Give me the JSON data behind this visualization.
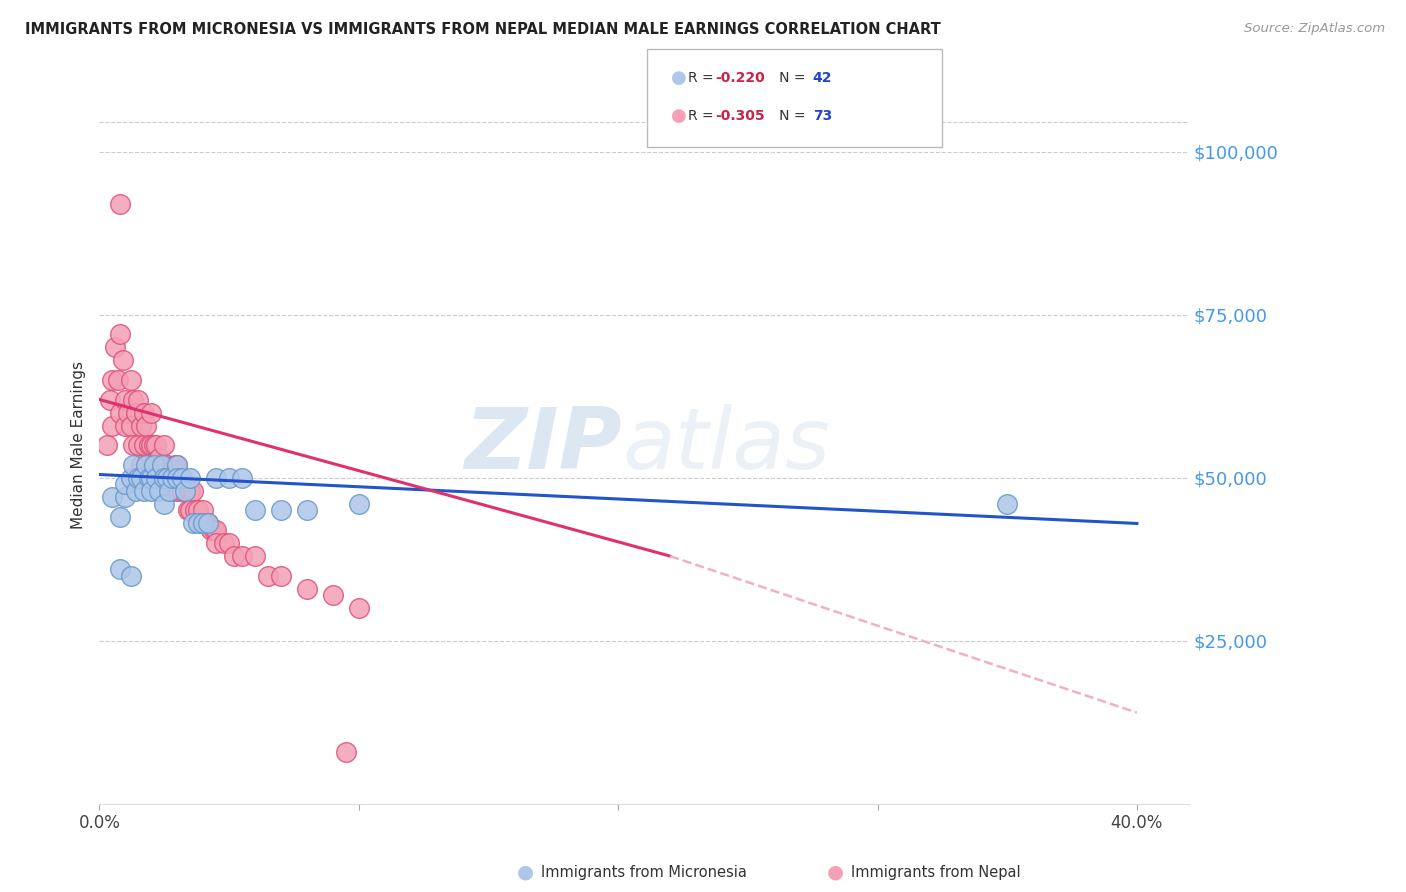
{
  "title": "IMMIGRANTS FROM MICRONESIA VS IMMIGRANTS FROM NEPAL MEDIAN MALE EARNINGS CORRELATION CHART",
  "source": "Source: ZipAtlas.com",
  "ylabel": "Median Male Earnings",
  "yticks": [
    0,
    25000,
    50000,
    75000,
    100000
  ],
  "ytick_labels": [
    "",
    "$25,000",
    "$50,000",
    "$75,000",
    "$100,000"
  ],
  "xlim": [
    0.0,
    0.42
  ],
  "ylim": [
    0,
    110000
  ],
  "micronesia_color": "#aec6e8",
  "micronesia_edge": "#6699cc",
  "nepal_color": "#f4a0b5",
  "nepal_edge": "#e0507a",
  "trend_micronesia_color": "#2255cc",
  "trend_nepal_color": "#e03070",
  "trend_nepal_ext_color": "#f0b0c8",
  "watermark_zip": "ZIP",
  "watermark_atlas": "atlas",
  "background_color": "#ffffff",
  "grid_color": "#cccccc",
  "ytick_color": "#4499ee",
  "title_color": "#222222",
  "source_color": "#999999",
  "micronesia_x": [
    0.005,
    0.008,
    0.008,
    0.01,
    0.01,
    0.012,
    0.013,
    0.014,
    0.015,
    0.016,
    0.017,
    0.018,
    0.019,
    0.02,
    0.02,
    0.021,
    0.022,
    0.023,
    0.024,
    0.025,
    0.025,
    0.026,
    0.027,
    0.028,
    0.03,
    0.03,
    0.032,
    0.033,
    0.035,
    0.036,
    0.038,
    0.04,
    0.042,
    0.045,
    0.05,
    0.055,
    0.06,
    0.07,
    0.08,
    0.1,
    0.35,
    0.012
  ],
  "micronesia_y": [
    47000,
    44000,
    36000,
    47000,
    49000,
    50000,
    52000,
    48000,
    50000,
    50000,
    48000,
    52000,
    50000,
    50000,
    48000,
    52000,
    50000,
    48000,
    52000,
    50000,
    46000,
    50000,
    48000,
    50000,
    52000,
    50000,
    50000,
    48000,
    50000,
    43000,
    43000,
    43000,
    43000,
    50000,
    50000,
    50000,
    45000,
    45000,
    45000,
    46000,
    46000,
    35000
  ],
  "nepal_x": [
    0.003,
    0.004,
    0.005,
    0.005,
    0.006,
    0.007,
    0.008,
    0.008,
    0.009,
    0.01,
    0.01,
    0.011,
    0.012,
    0.012,
    0.013,
    0.013,
    0.014,
    0.015,
    0.015,
    0.016,
    0.016,
    0.017,
    0.017,
    0.018,
    0.018,
    0.019,
    0.02,
    0.02,
    0.021,
    0.021,
    0.022,
    0.022,
    0.023,
    0.024,
    0.025,
    0.025,
    0.026,
    0.027,
    0.028,
    0.028,
    0.029,
    0.03,
    0.03,
    0.031,
    0.032,
    0.033,
    0.034,
    0.035,
    0.035,
    0.036,
    0.037,
    0.038,
    0.039,
    0.04,
    0.04,
    0.041,
    0.042,
    0.043,
    0.044,
    0.045,
    0.045,
    0.048,
    0.05,
    0.052,
    0.055,
    0.06,
    0.065,
    0.07,
    0.08,
    0.09,
    0.1,
    0.008,
    0.095
  ],
  "nepal_y": [
    55000,
    62000,
    58000,
    65000,
    70000,
    65000,
    72000,
    60000,
    68000,
    62000,
    58000,
    60000,
    65000,
    58000,
    62000,
    55000,
    60000,
    62000,
    55000,
    58000,
    52000,
    60000,
    55000,
    58000,
    52000,
    55000,
    60000,
    55000,
    55000,
    52000,
    55000,
    50000,
    53000,
    52000,
    55000,
    50000,
    52000,
    50000,
    50000,
    48000,
    52000,
    48000,
    52000,
    50000,
    48000,
    48000,
    45000,
    48000,
    45000,
    48000,
    45000,
    45000,
    43000,
    45000,
    43000,
    43000,
    43000,
    42000,
    42000,
    42000,
    40000,
    40000,
    40000,
    38000,
    38000,
    38000,
    35000,
    35000,
    33000,
    32000,
    30000,
    92000,
    8000
  ],
  "legend_r1": "R = -0.220",
  "legend_n1": "N = 42",
  "legend_r2": "R = -0.305",
  "legend_n2": "N = 73",
  "legend_r_color": "#cc2244",
  "legend_n_color": "#2244cc",
  "bottom_legend_mic": "Immigrants from Micronesia",
  "bottom_legend_nep": "Immigrants from Nepal"
}
